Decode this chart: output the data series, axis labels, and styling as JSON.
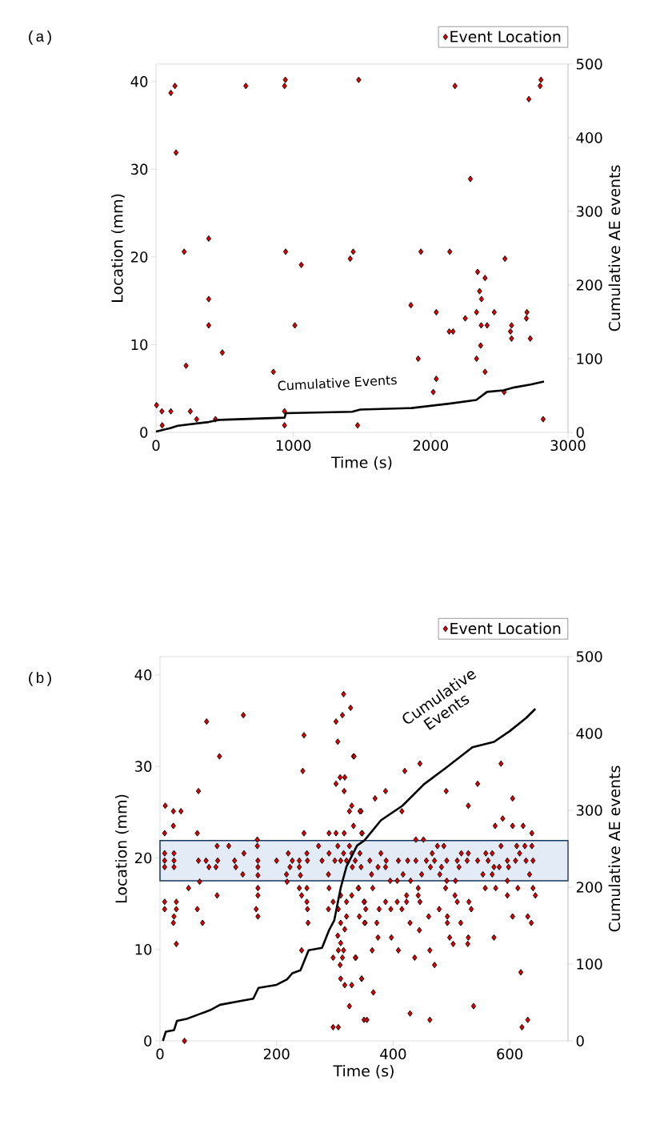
{
  "chart_data": [
    {
      "type": "scatter",
      "annotations": [
        "(a)"
      ],
      "xlabel": "Time (s)",
      "ylabel": "Location (mm)",
      "y2label": "Cumulative AE events",
      "legend": "top right",
      "xlim": [
        0,
        3000
      ],
      "xticks": [
        0,
        1000,
        2000,
        3000
      ],
      "ylim": [
        0,
        42
      ],
      "yticks": [
        0,
        10,
        20,
        30,
        40
      ],
      "y2lim": [
        0,
        500
      ],
      "y2ticks": [
        0,
        100,
        200,
        300,
        400,
        500
      ],
      "series": [
        {
          "name": "Event Location",
          "marker": "diamond",
          "color": "#e00000",
          "x": [
            138,
            108,
            654,
            942,
            936,
            1476,
            2177,
            2803,
            2797,
            2715,
            146,
            2289,
            384,
            205,
            944,
            1058,
            1436,
            1414,
            1929,
            2139,
            2541,
            2342,
            2396,
            2356,
            2370,
            384,
            1856,
            2041,
            2252,
            2334,
            2463,
            2701,
            2697,
            384,
            1011,
            2368,
            2411,
            2589,
            2135,
            2163,
            2581,
            2589,
            2725,
            2364,
            483,
            219,
            1909,
            2334,
            2396,
            855,
            2041,
            2019,
            4,
            43,
            108,
            250,
            296,
            433,
            936,
            45,
            936,
            1468,
            2819,
            2535
          ],
          "values": [
            39.5,
            38.7,
            39.5,
            40.2,
            39.5,
            40.2,
            39.5,
            40.2,
            39.5,
            38.0,
            31.9,
            28.9,
            22.1,
            20.6,
            20.6,
            19.1,
            20.6,
            19.8,
            20.6,
            20.6,
            19.8,
            18.3,
            17.6,
            16.1,
            15.2,
            15.2,
            14.5,
            13.7,
            13.0,
            13.7,
            13.7,
            13.7,
            13.0,
            12.2,
            12.2,
            12.2,
            12.2,
            12.2,
            11.5,
            11.5,
            11.5,
            10.7,
            10.7,
            9.9,
            9.1,
            7.6,
            8.4,
            8.4,
            6.9,
            6.9,
            6.1,
            4.6,
            3.1,
            2.4,
            2.4,
            2.4,
            1.5,
            1.5,
            2.4,
            0.8,
            0.8,
            0.8,
            1.5,
            4.6
          ]
        },
        {
          "name": "Cumulative Events",
          "type": "line",
          "axis": "y2",
          "color": "#000000",
          "line_style": "solid",
          "x": [
            0,
            108,
            158,
            384,
            463,
            936,
            946,
            1428,
            1487,
            1861,
            2135,
            2332,
            2411,
            2530,
            2608,
            2727,
            2825
          ],
          "values": [
            1,
            6,
            9,
            14,
            17,
            20,
            26,
            28,
            31,
            33,
            39,
            44,
            55,
            57,
            61,
            65,
            69
          ]
        }
      ]
    },
    {
      "type": "scatter",
      "annotations": [
        "(b)"
      ],
      "xlabel": "Time (s)",
      "ylabel": "Location (mm)",
      "y2label": "Cumulative AE events",
      "legend": "top right",
      "xlim": [
        0,
        700
      ],
      "xticks": [
        0,
        200,
        400,
        600
      ],
      "ylim": [
        0,
        42
      ],
      "yticks": [
        0,
        10,
        20,
        30,
        40
      ],
      "y2lim": [
        0,
        500
      ],
      "y2ticks": [
        0,
        100,
        200,
        300,
        400,
        500
      ],
      "bands": [
        {
          "axis": "y",
          "from": 17.5,
          "to": 21.9,
          "color": "#e3ebf6"
        }
      ],
      "series": [
        {
          "name": "Event Location",
          "marker": "diamond",
          "color": "#e00000",
          "x": [
            315,
            327,
            313,
            302,
            143,
            80,
            305,
            247,
            102,
            332,
            245,
            309,
            317,
            302,
            316,
            66,
            9,
            23,
            36,
            329,
            325,
            345,
            23,
            332,
            8,
            64,
            247,
            290,
            302,
            316,
            347,
            167,
            98,
            118,
            167,
            272,
            8,
            24,
            144,
            220,
            252,
            8,
            24,
            66,
            79,
            99,
            128,
            168,
            200,
            227,
            239,
            253,
            278,
            8,
            24,
            84,
            96,
            130,
            168,
            223,
            239,
            142,
            168,
            217,
            241,
            289,
            68,
            218,
            49,
            168,
            239,
            252,
            290,
            98,
            168,
            243,
            8,
            28,
            252,
            297,
            310,
            8,
            28,
            64,
            165,
            253,
            289,
            24,
            168,
            320,
            23,
            73,
            254,
            310,
            28,
            243,
            306,
            315,
            297,
            313,
            336,
            309,
            310,
            317,
            329,
            346,
            325,
            297,
            306,
            42,
            305,
            310,
            317,
            306,
            320,
            329,
            352,
            351,
            341,
            290,
            310,
            329,
            343,
            350,
            355,
            300,
            320,
            330,
            305,
            325,
            315,
            335,
            345,
            333,
            387,
            369,
            343,
            346,
            420,
            446,
            585,
            545,
            491,
            605,
            529,
            415,
            575,
            588,
            605,
            623,
            638,
            439,
            452,
            476,
            487,
            585,
            612,
            626,
            638,
            379,
            467,
            517,
            529,
            559,
            570,
            617,
            360,
            388,
            409,
            425,
            439,
            457,
            471,
            492,
            510,
            527,
            545,
            563,
            596,
            610,
            628,
            640,
            374,
            387,
            464,
            483,
            513,
            573,
            582,
            598,
            363,
            417,
            449,
            480,
            554,
            570,
            634,
            395,
            407,
            430,
            492,
            507,
            596,
            340,
            365,
            443,
            490,
            558,
            576,
            614,
            640,
            423,
            443,
            506,
            596,
            644,
            350,
            387,
            407,
            423,
            446,
            510,
            530,
            353,
            376,
            396,
            415,
            479,
            534,
            342,
            461,
            493,
            605,
            631,
            351,
            372,
            429,
            493,
            516,
            637,
            445,
            374,
            397,
            497,
            529,
            573,
            503,
            528,
            364,
            409,
            463,
            335,
            437,
            471,
            619,
            346,
            366,
            538,
            429,
            463,
            631,
            621
          ],
          "values": [
            37.9,
            36.4,
            35.6,
            34.9,
            35.6,
            34.9,
            32.7,
            33.4,
            31.1,
            31.1,
            29.5,
            28.8,
            28.8,
            28.1,
            27.3,
            27.3,
            25.7,
            25.1,
            25.1,
            25.7,
            25.1,
            25.1,
            23.5,
            23.5,
            22.7,
            22.7,
            22.7,
            22.7,
            22.7,
            22.7,
            22.7,
            22.0,
            21.3,
            21.3,
            21.3,
            21.3,
            20.5,
            20.5,
            20.5,
            20.5,
            20.5,
            19.7,
            19.7,
            19.7,
            19.7,
            19.7,
            19.7,
            19.7,
            19.7,
            19.7,
            19.7,
            19.7,
            19.7,
            19.0,
            19.0,
            19.0,
            19.0,
            19.0,
            19.0,
            19.0,
            19.0,
            18.2,
            18.1,
            18.2,
            18.1,
            18.2,
            17.4,
            17.4,
            16.7,
            16.7,
            16.7,
            16.7,
            16.7,
            15.9,
            15.9,
            15.9,
            15.2,
            15.2,
            15.2,
            15.2,
            15.9,
            14.4,
            14.4,
            14.4,
            14.4,
            14.4,
            14.4,
            13.6,
            13.6,
            13.6,
            12.9,
            12.9,
            12.9,
            12.9,
            10.6,
            9.9,
            9.9,
            9.9,
            9.1,
            9.1,
            9.1,
            8.3,
            6.8,
            6.1,
            6.1,
            6.8,
            3.8,
            1.5,
            1.5,
            0.0,
            11.5,
            10.7,
            12.2,
            14.4,
            15.2,
            15.9,
            12.9,
            15.2,
            16.7,
            20.5,
            19.7,
            20.5,
            20.5,
            2.3,
            2.3,
            19.7,
            19.7,
            19.0,
            21.3,
            21.3,
            20.5,
            19.7,
            19.0,
            31.1,
            27.3,
            26.5,
            25.1,
            22.7,
            29.5,
            30.3,
            30.3,
            28.1,
            27.3,
            26.5,
            25.7,
            25.1,
            23.5,
            24.3,
            23.5,
            23.5,
            22.7,
            22.0,
            22.0,
            21.3,
            21.3,
            21.3,
            21.3,
            21.3,
            21.3,
            20.5,
            20.5,
            20.5,
            20.5,
            20.5,
            20.5,
            20.5,
            19.7,
            19.7,
            19.7,
            19.7,
            19.7,
            19.7,
            19.7,
            19.7,
            19.7,
            19.7,
            19.7,
            19.7,
            19.7,
            19.7,
            19.7,
            19.7,
            19.0,
            19.0,
            19.0,
            19.0,
            19.0,
            19.0,
            19.0,
            19.0,
            18.2,
            18.2,
            18.2,
            18.2,
            18.2,
            18.2,
            18.2,
            17.5,
            17.5,
            17.5,
            17.5,
            17.5,
            17.5,
            16.7,
            16.7,
            16.7,
            16.7,
            16.7,
            16.7,
            16.7,
            16.7,
            15.9,
            15.9,
            15.9,
            15.9,
            15.9,
            15.2,
            15.2,
            15.2,
            15.2,
            15.2,
            15.2,
            15.2,
            14.4,
            14.4,
            14.4,
            14.4,
            14.4,
            14.4,
            13.6,
            13.6,
            13.6,
            13.6,
            13.6,
            12.9,
            12.9,
            12.9,
            12.9,
            12.9,
            12.9,
            12.1,
            11.3,
            11.3,
            11.3,
            11.3,
            11.3,
            10.6,
            10.6,
            9.9,
            9.9,
            9.9,
            9.1,
            9.1,
            8.3,
            7.5,
            6.8,
            5.3,
            3.8,
            3.0,
            2.3,
            2.3,
            1.5
          ]
        },
        {
          "name": "Cumulative Events",
          "type": "line",
          "axis": "y2",
          "color": "#000000",
          "line_style": "solid",
          "x": [
            5,
            10,
            24,
            29,
            47,
            68,
            86,
            103,
            139,
            160,
            169,
            200,
            218,
            227,
            241,
            255,
            278,
            290,
            299,
            310,
            320,
            338,
            351,
            379,
            416,
            453,
            490,
            536,
            573,
            600,
            628,
            644
          ],
          "values": [
            0,
            12,
            14,
            26,
            29,
            35,
            40,
            47,
            52,
            55,
            69,
            73,
            80,
            88,
            92,
            118,
            121,
            144,
            157,
            199,
            227,
            254,
            261,
            287,
            306,
            334,
            355,
            382,
            389,
            403,
            420,
            432
          ]
        }
      ]
    }
  ]
}
